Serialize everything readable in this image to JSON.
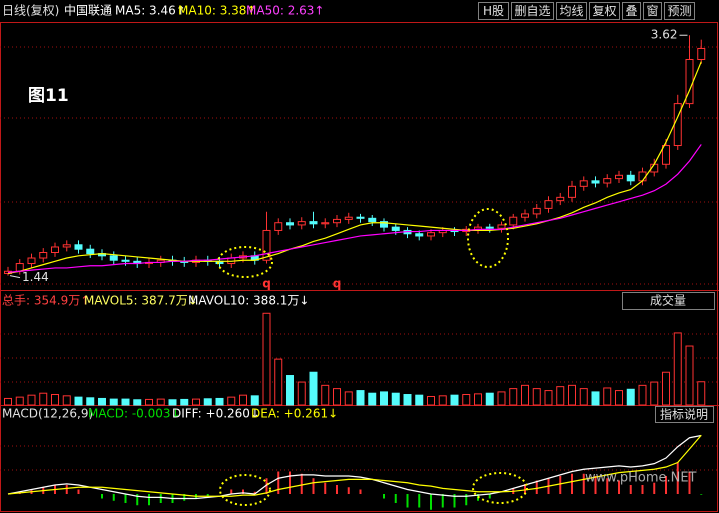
{
  "toolbar": {
    "period": "日线(复权)",
    "stock": "中国联通",
    "ma5": "MA5: 3.46↑",
    "ma10": "MA10: 3.38↑",
    "ma50": "MA50: 2.63↑",
    "buttons": [
      "H股",
      "删自选",
      "均线",
      "复权",
      "叠",
      "窗",
      "预测"
    ]
  },
  "figure_label": "图11",
  "volume_header": {
    "total": "总手: 354.9万↑",
    "mavol5": "MAVOL5: 387.7万↓",
    "mavol10": "MAVOL10: 388.1万↓",
    "button": "成交量"
  },
  "macd_header": {
    "name": "MACD(12,26,9)",
    "macd": "MACD: -0.003↓",
    "diff": "DIFF: +0.260↓",
    "dea": "DEA: +0.261↓",
    "button": "指标说明"
  },
  "watermark": "www.pHome.NET",
  "chart_data": [
    {
      "type": "candlestick",
      "up_color": "#ff3232",
      "down_color": "#54fcfc",
      "open": [
        1.46,
        1.48,
        1.55,
        1.6,
        1.65,
        1.7,
        1.72,
        1.68,
        1.64,
        1.62,
        1.58,
        1.57,
        1.55,
        1.56,
        1.58,
        1.57,
        1.56,
        1.58,
        1.57,
        1.55,
        1.6,
        1.62,
        1.58,
        1.85,
        1.92,
        1.9,
        1.93,
        1.91,
        1.92,
        1.95,
        1.97,
        1.96,
        1.93,
        1.88,
        1.85,
        1.82,
        1.8,
        1.83,
        1.85,
        1.84,
        1.86,
        1.88,
        1.87,
        1.9,
        1.97,
        2.0,
        2.05,
        2.12,
        2.15,
        2.25,
        2.3,
        2.28,
        2.32,
        2.35,
        2.3,
        2.38,
        2.45,
        2.62,
        3.0,
        3.4
      ],
      "high": [
        1.52,
        1.59,
        1.64,
        1.69,
        1.74,
        1.76,
        1.76,
        1.72,
        1.68,
        1.66,
        1.62,
        1.61,
        1.6,
        1.62,
        1.62,
        1.61,
        1.62,
        1.62,
        1.61,
        1.64,
        1.66,
        1.66,
        2.02,
        1.96,
        1.96,
        1.97,
        2.02,
        1.96,
        1.99,
        2.01,
        2.0,
        1.99,
        1.96,
        1.91,
        1.88,
        1.85,
        1.86,
        1.88,
        1.88,
        1.89,
        1.91,
        1.91,
        1.93,
        2.0,
        2.04,
        2.09,
        2.16,
        2.19,
        2.3,
        2.34,
        2.34,
        2.36,
        2.39,
        2.39,
        2.42,
        2.5,
        2.68,
        3.08,
        3.62,
        3.58
      ],
      "low": [
        1.44,
        1.45,
        1.51,
        1.56,
        1.61,
        1.66,
        1.64,
        1.6,
        1.58,
        1.54,
        1.53,
        1.51,
        1.51,
        1.52,
        1.53,
        1.52,
        1.52,
        1.53,
        1.51,
        1.51,
        1.56,
        1.54,
        1.55,
        1.81,
        1.86,
        1.86,
        1.87,
        1.87,
        1.88,
        1.91,
        1.92,
        1.89,
        1.84,
        1.81,
        1.78,
        1.76,
        1.76,
        1.79,
        1.8,
        1.8,
        1.82,
        1.83,
        1.83,
        1.86,
        1.93,
        1.96,
        2.01,
        2.08,
        2.11,
        2.21,
        2.24,
        2.24,
        2.28,
        2.26,
        2.26,
        2.34,
        2.41,
        2.58,
        2.96,
        3.36
      ],
      "close": [
        1.48,
        1.55,
        1.6,
        1.65,
        1.7,
        1.72,
        1.68,
        1.64,
        1.62,
        1.58,
        1.57,
        1.55,
        1.56,
        1.58,
        1.57,
        1.56,
        1.58,
        1.57,
        1.55,
        1.6,
        1.62,
        1.58,
        1.85,
        1.92,
        1.9,
        1.93,
        1.91,
        1.92,
        1.95,
        1.97,
        1.96,
        1.93,
        1.88,
        1.85,
        1.82,
        1.8,
        1.83,
        1.85,
        1.84,
        1.86,
        1.88,
        1.87,
        1.9,
        1.97,
        2.0,
        2.05,
        2.12,
        2.15,
        2.25,
        2.3,
        2.28,
        2.32,
        2.35,
        2.3,
        2.38,
        2.45,
        2.62,
        3.0,
        3.4,
        3.5
      ],
      "series": [
        {
          "color": "#ffff00",
          "values": [
            1.46,
            1.48,
            1.51,
            1.54,
            1.57,
            1.6,
            1.62,
            1.63,
            1.64,
            1.63,
            1.62,
            1.61,
            1.6,
            1.59,
            1.58,
            1.57,
            1.57,
            1.57,
            1.57,
            1.57,
            1.58,
            1.58,
            1.61,
            1.64,
            1.68,
            1.71,
            1.75,
            1.78,
            1.82,
            1.86,
            1.9,
            1.92,
            1.92,
            1.91,
            1.9,
            1.89,
            1.88,
            1.87,
            1.86,
            1.85,
            1.85,
            1.85,
            1.86,
            1.87,
            1.89,
            1.91,
            1.94,
            1.97,
            2.01,
            2.06,
            2.1,
            2.15,
            2.19,
            2.22,
            2.3,
            2.45,
            2.65,
            2.88,
            3.12,
            3.38
          ]
        },
        {
          "color": "#ff00ff",
          "values": [
            1.47,
            1.48,
            1.49,
            1.5,
            1.51,
            1.51,
            1.52,
            1.53,
            1.53,
            1.54,
            1.55,
            1.55,
            1.56,
            1.56,
            1.57,
            1.57,
            1.58,
            1.58,
            1.59,
            1.6,
            1.61,
            1.62,
            1.64,
            1.66,
            1.68,
            1.7,
            1.72,
            1.74,
            1.76,
            1.78,
            1.8,
            1.81,
            1.82,
            1.83,
            1.84,
            1.84,
            1.85,
            1.85,
            1.85,
            1.85,
            1.86,
            1.86,
            1.86,
            1.88,
            1.9,
            1.92,
            1.94,
            1.96,
            1.99,
            2.02,
            2.05,
            2.08,
            2.11,
            2.14,
            2.17,
            2.21,
            2.27,
            2.36,
            2.48,
            2.63
          ]
        }
      ],
      "max_label": 3.62,
      "min_label": 1.44,
      "annotations": [
        {
          "text": "q",
          "x": 22
        },
        {
          "text": "q",
          "x": 28
        }
      ],
      "ylim": [
        1.31,
        3.74
      ]
    },
    {
      "type": "volume",
      "values": [
        100,
        120,
        150,
        180,
        160,
        140,
        120,
        110,
        100,
        90,
        90,
        80,
        85,
        90,
        80,
        85,
        90,
        95,
        100,
        120,
        150,
        140,
        1400,
        700,
        450,
        350,
        500,
        300,
        250,
        200,
        220,
        180,
        200,
        180,
        160,
        150,
        130,
        140,
        150,
        160,
        170,
        180,
        200,
        250,
        300,
        250,
        220,
        280,
        300,
        250,
        200,
        260,
        220,
        240,
        300,
        350,
        500,
        1100,
        900,
        354.9
      ],
      "ylim": [
        0,
        1450
      ]
    },
    {
      "type": "macd",
      "pos_color": "#ff3232",
      "neg_color": "#00e000",
      "values": [
        0,
        0.01,
        0.02,
        0.03,
        0.04,
        0.04,
        0.02,
        0,
        -0.02,
        -0.03,
        -0.04,
        -0.05,
        -0.05,
        -0.04,
        -0.04,
        -0.03,
        -0.02,
        -0.01,
        0,
        0.02,
        0.02,
        0.01,
        0.07,
        0.1,
        0.1,
        0.09,
        0.07,
        0.05,
        0.04,
        0.03,
        0.02,
        0,
        -0.02,
        -0.04,
        -0.06,
        -0.06,
        -0.07,
        -0.06,
        -0.06,
        -0.05,
        -0.03,
        -0.02,
        0,
        0.026,
        0.044,
        0.06,
        0.07,
        0.08,
        0.09,
        0.09,
        0.08,
        0.07,
        0.06,
        0.04,
        0.04,
        0.05,
        0.08,
        0.14,
        0.1,
        -0.003
      ],
      "series": [
        {
          "color": "#ffffff",
          "values": [
            0.0,
            0.01,
            0.02,
            0.03,
            0.04,
            0.045,
            0.04,
            0.03,
            0.02,
            0.01,
            0.0,
            -0.01,
            -0.015,
            -0.015,
            -0.02,
            -0.02,
            -0.02,
            -0.015,
            -0.01,
            0.0,
            0.005,
            0.0,
            0.04,
            0.07,
            0.08,
            0.085,
            0.085,
            0.08,
            0.08,
            0.08,
            0.075,
            0.065,
            0.05,
            0.035,
            0.02,
            0.01,
            0.0,
            -0.005,
            -0.01,
            -0.01,
            -0.005,
            0.0,
            0.01,
            0.025,
            0.04,
            0.055,
            0.07,
            0.085,
            0.1,
            0.11,
            0.115,
            0.12,
            0.125,
            0.12,
            0.125,
            0.135,
            0.16,
            0.21,
            0.25,
            0.26
          ]
        },
        {
          "color": "#ffff00",
          "values": [
            0.0,
            0.005,
            0.01,
            0.015,
            0.02,
            0.025,
            0.03,
            0.03,
            0.03,
            0.025,
            0.02,
            0.015,
            0.01,
            0.005,
            0.0,
            -0.005,
            -0.01,
            -0.01,
            -0.01,
            -0.01,
            -0.005,
            -0.005,
            0.005,
            0.02,
            0.03,
            0.04,
            0.05,
            0.055,
            0.06,
            0.065,
            0.065,
            0.065,
            0.06,
            0.055,
            0.05,
            0.04,
            0.035,
            0.025,
            0.02,
            0.015,
            0.01,
            0.01,
            0.01,
            0.012,
            0.018,
            0.025,
            0.035,
            0.045,
            0.055,
            0.065,
            0.075,
            0.085,
            0.095,
            0.1,
            0.105,
            0.11,
            0.12,
            0.14,
            0.2,
            0.261
          ]
        }
      ],
      "ylim": [
        -0.08,
        0.32
      ]
    }
  ]
}
